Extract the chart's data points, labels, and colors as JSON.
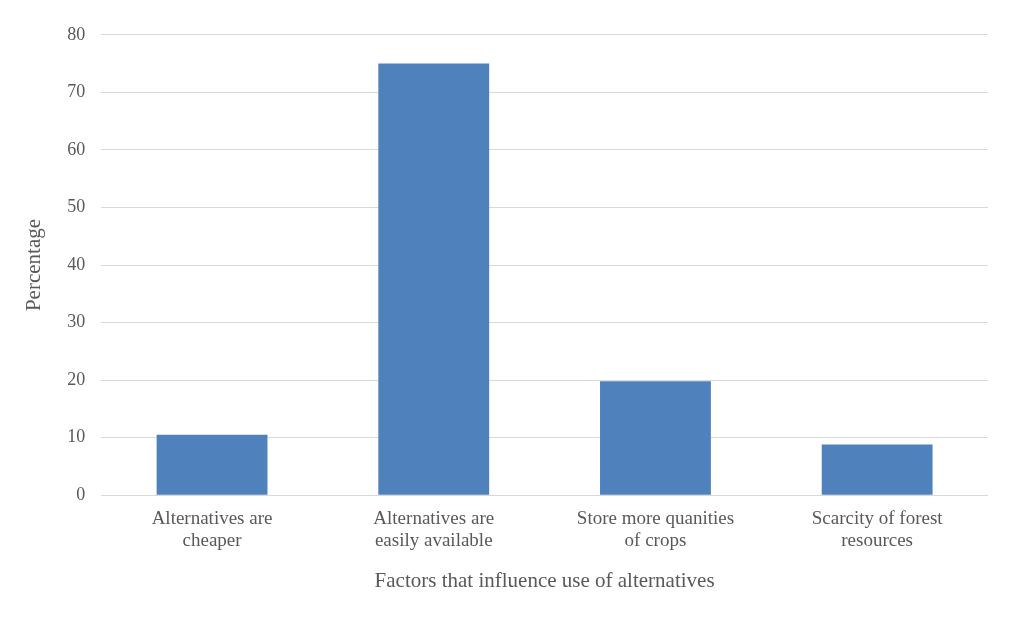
{
  "chart_data": {
    "type": "bar",
    "xlabel": "Factors that influence use of alternatives",
    "ylabel": "Percentage",
    "categories": [
      "Alternatives are cheaper",
      "Alternatives are easily available",
      "Store more quanities of crops",
      "Scarcity of forest resources"
    ],
    "values": [
      10.5,
      75,
      19.8,
      8.8
    ],
    "color": "#4f81bd",
    "ylim": [
      0,
      80
    ],
    "yticks": [
      0,
      10,
      20,
      30,
      40,
      50,
      60,
      70,
      80
    ],
    "grid": "y"
  }
}
